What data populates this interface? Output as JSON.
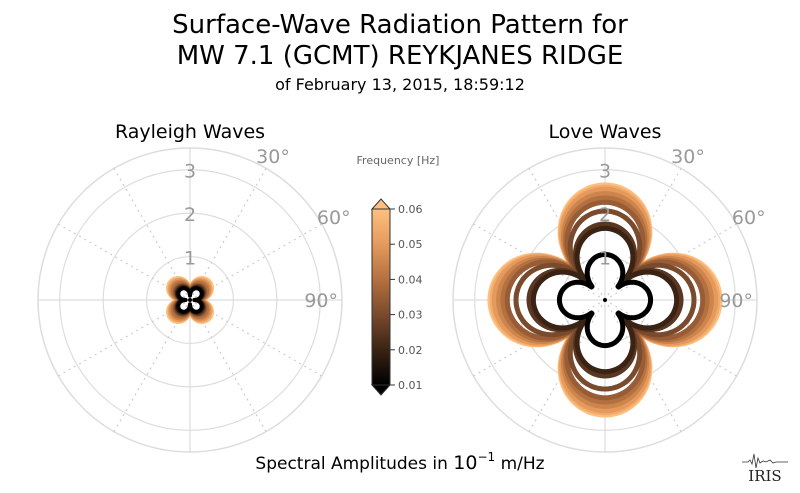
{
  "title_line1": "Surface-Wave Radiation Pattern for",
  "title_line2": "MW 7.1 (GCMT) REYKJANES RIDGE",
  "subtitle": "of February 13, 2015, 18:59:12",
  "footer": {
    "prefix": "Spectral Amplitudes in ",
    "base": "10",
    "exponent": "−1",
    "unit": " m/Hz"
  },
  "logo_text": "IRIS",
  "colors": {
    "grid": "#dddddd",
    "grid_dotted": "#cccccc",
    "tick_label": "#999999",
    "colormap": [
      "#000000",
      "#3a2314",
      "#7a4a2d",
      "#b5703f",
      "#e59a5c",
      "#ffc07f"
    ]
  },
  "chart_data": [
    {
      "type": "polar-line",
      "title": "Rayleigh Waves",
      "r_ticks": [
        "1",
        "2",
        "3"
      ],
      "rlim": [
        0,
        3.5
      ],
      "angle_ticks": [
        "30°",
        "60°",
        "90°"
      ],
      "grid": true,
      "pattern": {
        "shape": "four-lobe",
        "lobe_axes_deg": [
          45,
          135,
          225,
          315
        ],
        "waist": 0.3
      },
      "series": [
        {
          "freq": 0.01,
          "amplitude": 0.33
        },
        {
          "freq": 0.02,
          "amplitude": 0.36
        },
        {
          "freq": 0.025,
          "amplitude": 0.38
        },
        {
          "freq": 0.03,
          "amplitude": 0.4
        },
        {
          "freq": 0.035,
          "amplitude": 0.43
        },
        {
          "freq": 0.04,
          "amplitude": 0.48
        },
        {
          "freq": 0.045,
          "amplitude": 0.52
        },
        {
          "freq": 0.05,
          "amplitude": 0.56
        },
        {
          "freq": 0.055,
          "amplitude": 0.58
        },
        {
          "freq": 0.06,
          "amplitude": 0.62
        }
      ]
    },
    {
      "type": "polar-line",
      "title": "Love Waves",
      "r_ticks": [
        "1",
        "2",
        "3"
      ],
      "rlim": [
        0,
        3.5
      ],
      "angle_ticks": [
        "30°",
        "60°",
        "90°"
      ],
      "grid": true,
      "pattern": {
        "shape": "four-lobe",
        "lobe_axes_deg": [
          0,
          90,
          180,
          270
        ],
        "waist": 0.32
      },
      "series": [
        {
          "freq": 0.01,
          "amplitude": 1.05
        },
        {
          "freq": 0.02,
          "amplitude": 1.65
        },
        {
          "freq": 0.025,
          "amplitude": 1.75
        },
        {
          "freq": 0.03,
          "amplitude": 2.05
        },
        {
          "freq": 0.035,
          "amplitude": 2.25
        },
        {
          "freq": 0.04,
          "amplitude": 2.35
        },
        {
          "freq": 0.045,
          "amplitude": 2.45
        },
        {
          "freq": 0.05,
          "amplitude": 2.55
        },
        {
          "freq": 0.055,
          "amplitude": 2.6
        },
        {
          "freq": 0.06,
          "amplitude": 2.65
        }
      ]
    }
  ],
  "colorbar": {
    "label": "Frequency [Hz]",
    "ticks": [
      "0.01",
      "0.02",
      "0.03",
      "0.04",
      "0.05",
      "0.06"
    ],
    "range": [
      0.01,
      0.06
    ]
  }
}
